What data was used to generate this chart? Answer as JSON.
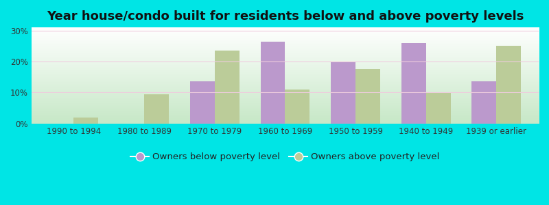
{
  "title": "Year house/condo built for residents below and above poverty levels",
  "categories": [
    "1990 to 1994",
    "1980 to 1989",
    "1970 to 1979",
    "1960 to 1969",
    "1950 to 1959",
    "1940 to 1949",
    "1939 or earlier"
  ],
  "below_poverty": [
    0,
    0,
    13.5,
    26.5,
    20.0,
    26.0,
    13.5
  ],
  "above_poverty": [
    2.0,
    9.5,
    23.5,
    11.0,
    17.5,
    10.0,
    25.0
  ],
  "below_color": "#bb99cc",
  "above_color": "#bbcc99",
  "background_outer": "#00e5e5",
  "gradient_top": "#ffffff",
  "gradient_bottom": "#c8e8c8",
  "grid_color": "#ddeecc",
  "ylabel_ticks": [
    "0%",
    "10%",
    "20%",
    "30%"
  ],
  "ytick_vals": [
    0,
    10,
    20,
    30
  ],
  "ylim": [
    0,
    31
  ],
  "legend_below": "Owners below poverty level",
  "legend_above": "Owners above poverty level",
  "title_fontsize": 13,
  "tick_fontsize": 8.5,
  "legend_fontsize": 9.5
}
